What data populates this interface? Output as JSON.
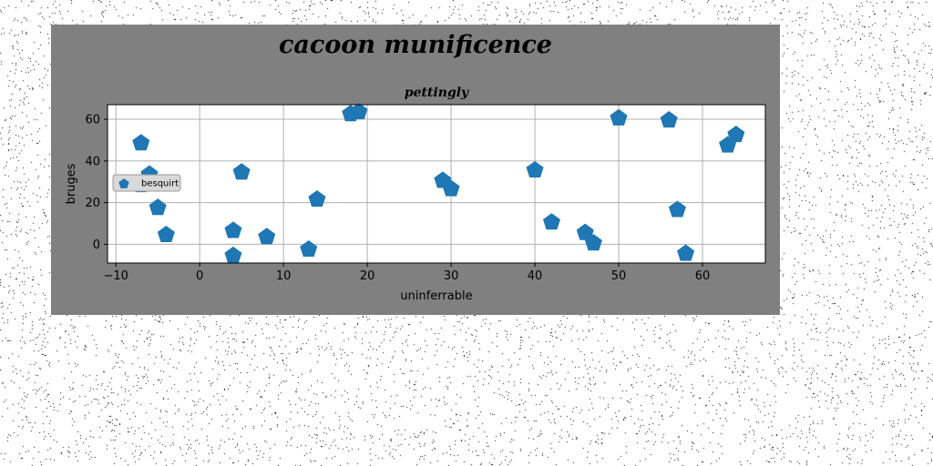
{
  "chart_data": {
    "type": "scatter",
    "title": "cacoon munificence",
    "subtitle": "pettingly",
    "xlabel": "uninferrable",
    "ylabel": "bruges",
    "xlim": [
      -11,
      67.5
    ],
    "ylim": [
      -9,
      67
    ],
    "xticks": [
      -10,
      0,
      10,
      20,
      30,
      40,
      50,
      60
    ],
    "yticks": [
      0,
      20,
      40,
      60
    ],
    "grid": true,
    "legend_position": "center-left",
    "series": [
      {
        "name": "besquirt",
        "color": "#1f77b4",
        "marker": "pentagon",
        "points": [
          {
            "x": -7,
            "y": 49
          },
          {
            "x": -6,
            "y": 34
          },
          {
            "x": -7,
            "y": 29
          },
          {
            "x": -5,
            "y": 18
          },
          {
            "x": -4,
            "y": 5
          },
          {
            "x": 4,
            "y": 7
          },
          {
            "x": 4,
            "y": -5
          },
          {
            "x": 5,
            "y": 35
          },
          {
            "x": 8,
            "y": 4
          },
          {
            "x": 13,
            "y": -2
          },
          {
            "x": 14,
            "y": 22
          },
          {
            "x": 18,
            "y": 63
          },
          {
            "x": 19,
            "y": 64
          },
          {
            "x": 29,
            "y": 31
          },
          {
            "x": 30,
            "y": 27
          },
          {
            "x": 40,
            "y": 36
          },
          {
            "x": 42,
            "y": 11
          },
          {
            "x": 46,
            "y": 6
          },
          {
            "x": 47,
            "y": 1
          },
          {
            "x": 50,
            "y": 61
          },
          {
            "x": 56,
            "y": 60
          },
          {
            "x": 57,
            "y": 17
          },
          {
            "x": 58,
            "y": -4
          },
          {
            "x": 63,
            "y": 48
          },
          {
            "x": 64,
            "y": 53
          }
        ]
      }
    ]
  }
}
